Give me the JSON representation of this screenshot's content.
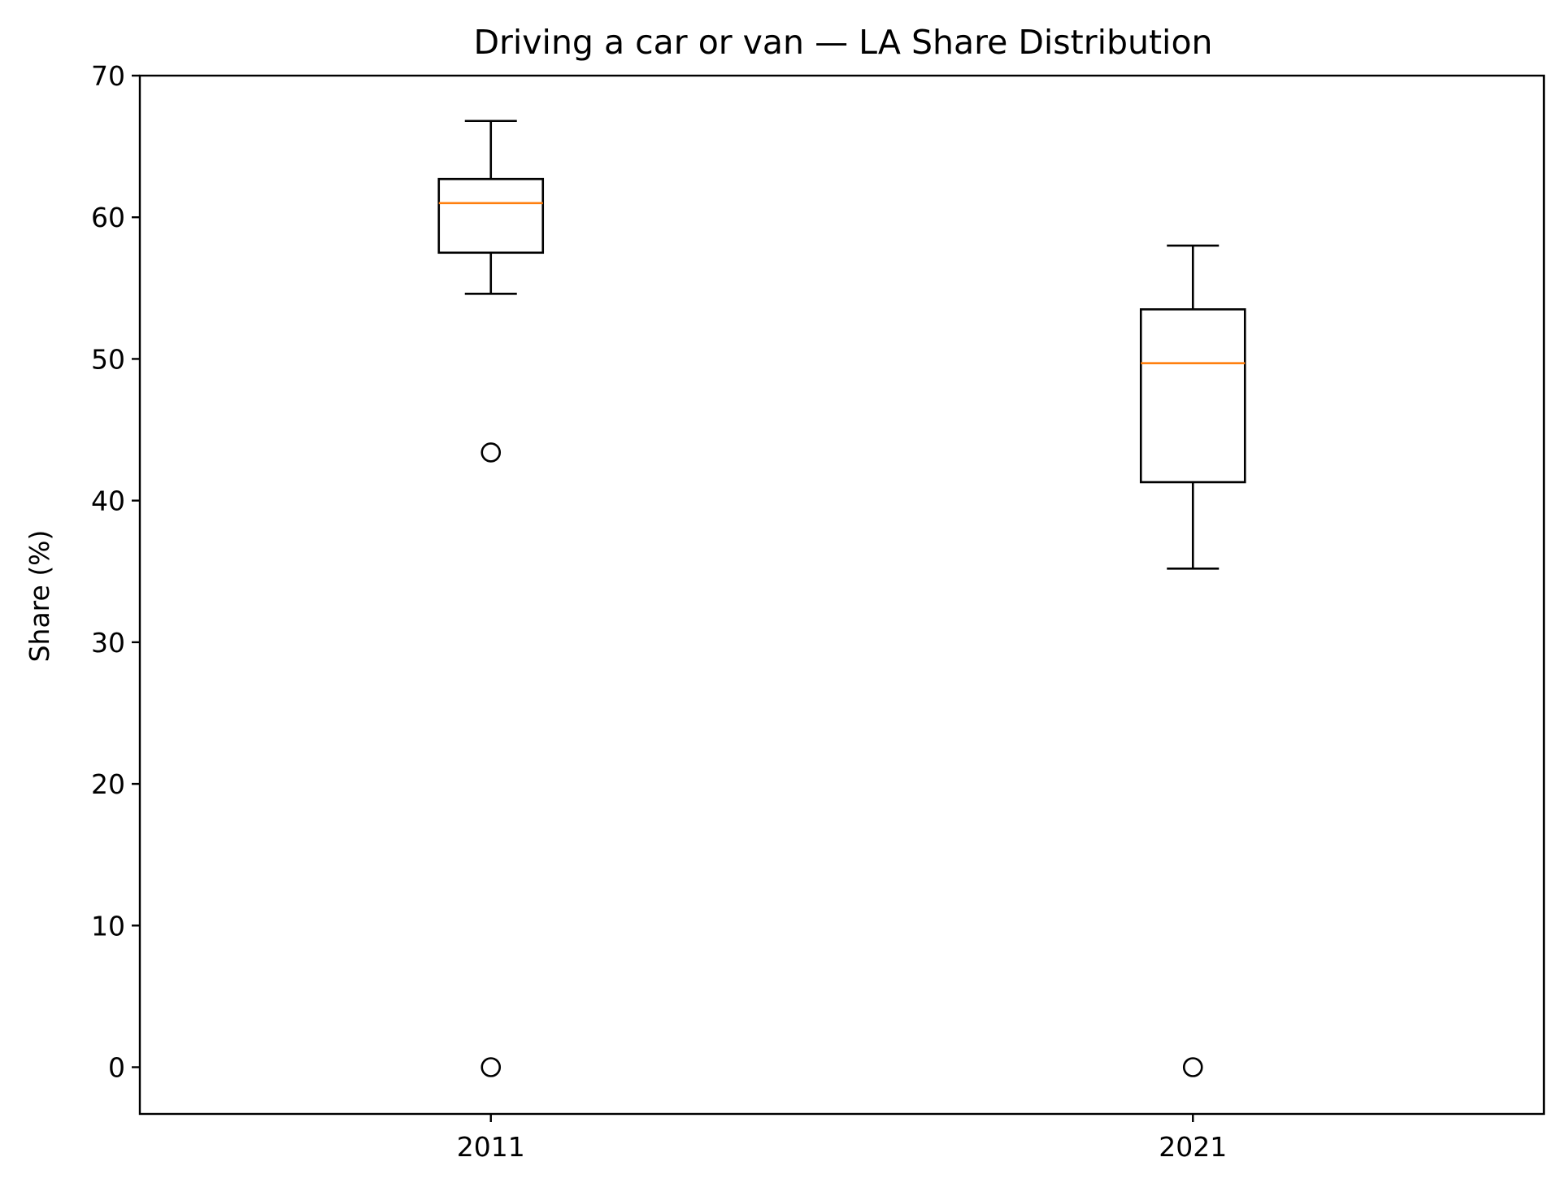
{
  "chart_data": {
    "type": "box",
    "title": "Driving a car or van — LA Share Distribution",
    "xlabel": "",
    "ylabel": "Share (%)",
    "ylim": [
      -3.3,
      70
    ],
    "yticks": [
      0,
      10,
      20,
      30,
      40,
      50,
      60,
      70
    ],
    "ytick_labels": [
      "0",
      "10",
      "20",
      "30",
      "40",
      "50",
      "60",
      "70"
    ],
    "categories": [
      "2011",
      "2021"
    ],
    "boxes": [
      {
        "category": "2011",
        "whisker_low": 54.6,
        "q1": 57.5,
        "median": 61.0,
        "q3": 62.7,
        "whisker_high": 66.8,
        "outliers": [
          43.4,
          0.0
        ]
      },
      {
        "category": "2021",
        "whisker_low": 35.2,
        "q1": 41.3,
        "median": 49.7,
        "q3": 53.5,
        "whisker_high": 58.0,
        "outliers": [
          0.0
        ]
      }
    ],
    "grid": false,
    "colors": {
      "box": "#000000",
      "median": "#ff7f0e",
      "outlier": "#000000"
    }
  }
}
